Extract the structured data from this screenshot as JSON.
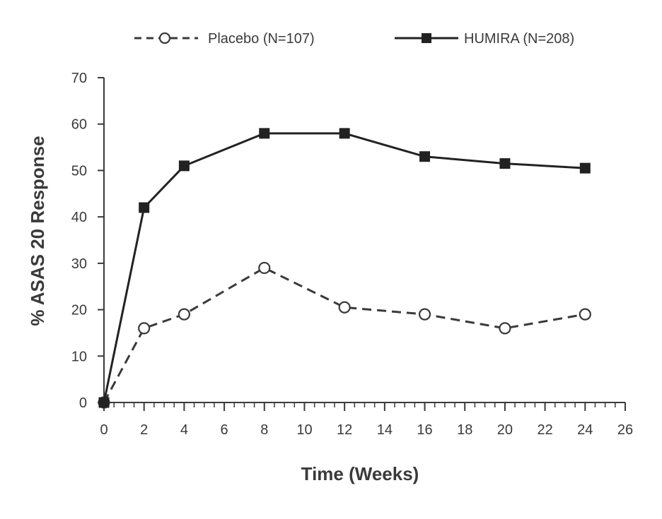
{
  "chart_data": {
    "type": "line",
    "title": "",
    "xlabel": "Time (Weeks)",
    "ylabel": "% ASAS 20 Response",
    "xlim": [
      0,
      26
    ],
    "ylim": [
      0,
      70
    ],
    "x_ticks": [
      0,
      2,
      4,
      6,
      8,
      10,
      12,
      14,
      16,
      18,
      20,
      22,
      24,
      26
    ],
    "y_ticks": [
      0,
      10,
      20,
      30,
      40,
      50,
      60,
      70
    ],
    "grid": false,
    "legend_position": "top",
    "series": [
      {
        "name": "Placebo (N=107)",
        "style": "dashed",
        "marker": "open-circle",
        "color": "#3a3a3a",
        "x": [
          0,
          2,
          4,
          8,
          12,
          16,
          20,
          24
        ],
        "values": [
          0,
          16,
          19,
          29,
          20.5,
          19,
          16,
          19
        ]
      },
      {
        "name": "HUMIRA (N=208)",
        "style": "solid",
        "marker": "filled-square",
        "color": "#222222",
        "x": [
          0,
          2,
          4,
          8,
          12,
          16,
          20,
          24
        ],
        "values": [
          0,
          42,
          51,
          58,
          58,
          53,
          51.5,
          50.5
        ]
      }
    ]
  }
}
